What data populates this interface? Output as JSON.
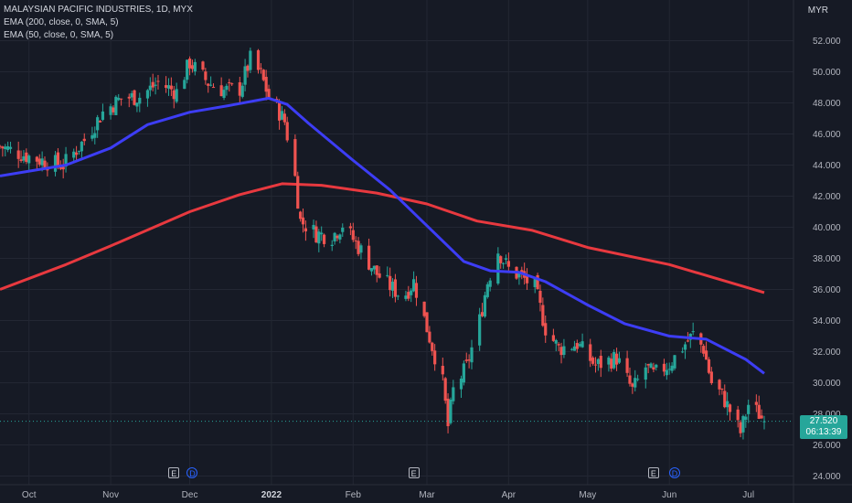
{
  "legend": {
    "title": "MALAYSIAN PACIFIC INDUSTRIES, 1D, MYX",
    "ema200": "EMA (200, close, 0, SMA, 5)",
    "ema50": "EMA (50, close, 0, SMA, 5)"
  },
  "currency": "MYR",
  "price_badge": {
    "price": "27.520",
    "countdown": "06:13:39"
  },
  "events": [
    {
      "type": "E",
      "date": "2021-11-25"
    },
    {
      "type": "D",
      "date": "2021-12-02"
    },
    {
      "type": "E",
      "date": "2022-02-24"
    },
    {
      "type": "E",
      "date": "2022-05-26"
    },
    {
      "type": "D",
      "date": "2022-06-03"
    }
  ],
  "colors": {
    "up": "#26a69a",
    "down": "#ef5350",
    "ema50": "#3d3df5",
    "ema200": "#e8393f",
    "bg": "#161a25",
    "grid": "#232733"
  },
  "chart_data": {
    "type": "candlestick",
    "title": "MALAYSIAN PACIFIC INDUSTRIES, 1D, MYX",
    "ylabel": "MYR",
    "ylim": [
      23.5,
      53.5
    ],
    "y_ticks": [
      "24.000",
      "26.000",
      "28.000",
      "30.000",
      "32.000",
      "34.000",
      "36.000",
      "38.000",
      "40.000",
      "42.000",
      "44.000",
      "46.000",
      "48.000",
      "50.000",
      "52.000"
    ],
    "x_ticks": [
      "Oct",
      "Nov",
      "Dec",
      "2022",
      "Feb",
      "Mar",
      "Apr",
      "May",
      "Jun",
      "Jul"
    ],
    "close_keypoints": [
      [
        "2021-09-20",
        45.2
      ],
      [
        "2021-09-30",
        44.6
      ],
      [
        "2021-10-08",
        44.2
      ],
      [
        "2021-10-14",
        44.0
      ],
      [
        "2021-10-22",
        45.6
      ],
      [
        "2021-10-29",
        47.4
      ],
      [
        "2021-11-05",
        48.3
      ],
      [
        "2021-11-12",
        48.4
      ],
      [
        "2021-11-19",
        49.3
      ],
      [
        "2021-11-26",
        48.7
      ],
      [
        "2021-12-01",
        50.6
      ],
      [
        "2021-12-08",
        49.3
      ],
      [
        "2021-12-14",
        48.8
      ],
      [
        "2021-12-20",
        48.9
      ],
      [
        "2021-12-24",
        50.8
      ],
      [
        "2021-12-28",
        49.8
      ],
      [
        "2021-12-31",
        48.4
      ],
      [
        "2022-01-04",
        47.4
      ],
      [
        "2022-01-06",
        46.8
      ],
      [
        "2022-01-10",
        43.2
      ],
      [
        "2022-01-12",
        40.4
      ],
      [
        "2022-01-18",
        39.6
      ],
      [
        "2022-01-24",
        39.4
      ],
      [
        "2022-01-28",
        40.2
      ],
      [
        "2022-02-04",
        38.5
      ],
      [
        "2022-02-10",
        37.0
      ],
      [
        "2022-02-15",
        36.2
      ],
      [
        "2022-02-20",
        35.5
      ],
      [
        "2022-02-24",
        36.5
      ],
      [
        "2022-03-01",
        33.5
      ],
      [
        "2022-03-07",
        30.0
      ],
      [
        "2022-03-09",
        27.2
      ],
      [
        "2022-03-11",
        29.5
      ],
      [
        "2022-03-16",
        31.0
      ],
      [
        "2022-03-21",
        34.0
      ],
      [
        "2022-03-24",
        36.5
      ],
      [
        "2022-03-28",
        38.5
      ],
      [
        "2022-04-01",
        37.3
      ],
      [
        "2022-04-06",
        36.8
      ],
      [
        "2022-04-11",
        36.1
      ],
      [
        "2022-04-15",
        33.5
      ],
      [
        "2022-04-20",
        32.2
      ],
      [
        "2022-04-27",
        32.5
      ],
      [
        "2022-05-04",
        31.1
      ],
      [
        "2022-05-12",
        31.6
      ],
      [
        "2022-05-18",
        29.5
      ],
      [
        "2022-05-23",
        31.0
      ],
      [
        "2022-05-26",
        30.5
      ],
      [
        "2022-06-01",
        31.2
      ],
      [
        "2022-06-07",
        32.5
      ],
      [
        "2022-06-10",
        33.1
      ],
      [
        "2022-06-14",
        32.2
      ],
      [
        "2022-06-17",
        30.0
      ],
      [
        "2022-06-21",
        29.2
      ],
      [
        "2022-06-24",
        28.2
      ],
      [
        "2022-06-28",
        26.8
      ],
      [
        "2022-07-01",
        28.6
      ],
      [
        "2022-07-05",
        28.0
      ],
      [
        "2022-07-07",
        27.52
      ]
    ],
    "ema50": [
      [
        "2021-09-20",
        43.3
      ],
      [
        "2021-10-15",
        44.0
      ],
      [
        "2021-11-01",
        45.1
      ],
      [
        "2021-11-15",
        46.6
      ],
      [
        "2021-12-01",
        47.4
      ],
      [
        "2021-12-15",
        47.8
      ],
      [
        "2021-12-31",
        48.3
      ],
      [
        "2022-01-07",
        47.9
      ],
      [
        "2022-01-15",
        46.7
      ],
      [
        "2022-02-01",
        44.3
      ],
      [
        "2022-02-15",
        42.4
      ],
      [
        "2022-03-01",
        40.1
      ],
      [
        "2022-03-15",
        37.8
      ],
      [
        "2022-03-25",
        37.2
      ],
      [
        "2022-04-05",
        37.1
      ],
      [
        "2022-04-15",
        36.5
      ],
      [
        "2022-05-01",
        35.0
      ],
      [
        "2022-05-15",
        33.8
      ],
      [
        "2022-06-01",
        33.0
      ],
      [
        "2022-06-15",
        32.8
      ],
      [
        "2022-06-30",
        31.5
      ],
      [
        "2022-07-07",
        30.6
      ]
    ],
    "ema200": [
      [
        "2021-09-20",
        36.0
      ],
      [
        "2021-10-15",
        37.6
      ],
      [
        "2021-11-01",
        38.8
      ],
      [
        "2021-12-01",
        41.0
      ],
      [
        "2021-12-20",
        42.1
      ],
      [
        "2022-01-05",
        42.8
      ],
      [
        "2022-01-20",
        42.7
      ],
      [
        "2022-02-10",
        42.2
      ],
      [
        "2022-03-01",
        41.5
      ],
      [
        "2022-03-20",
        40.4
      ],
      [
        "2022-04-10",
        39.8
      ],
      [
        "2022-05-01",
        38.7
      ],
      [
        "2022-06-01",
        37.6
      ],
      [
        "2022-07-07",
        35.8
      ]
    ],
    "last_price": 27.52
  }
}
